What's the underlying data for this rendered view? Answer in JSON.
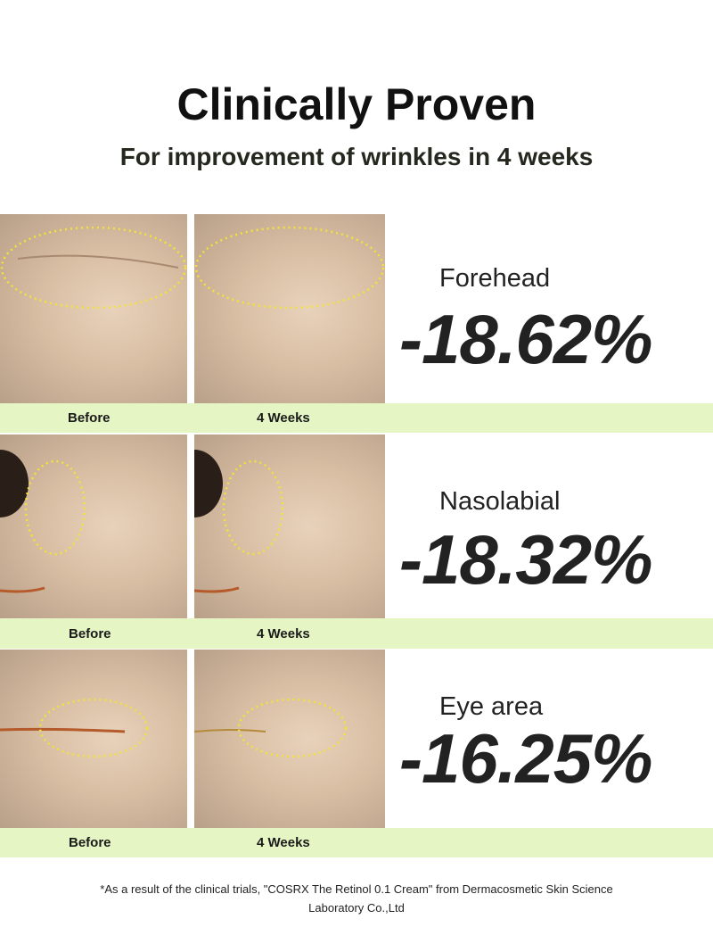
{
  "header": {
    "title": "Clinically Proven",
    "subtitle": "For improvement of wrinkles in 4 weeks"
  },
  "results": [
    {
      "area": "Forehead",
      "value": "-18.62%",
      "before_label": "Before",
      "after_label": "4 Weeks"
    },
    {
      "area": "Nasolabial",
      "value": "-18.32%",
      "before_label": "Before",
      "after_label": "4 Weeks"
    },
    {
      "area": "Eye area",
      "value": "-16.25%",
      "before_label": "Before",
      "after_label": "4 Weeks"
    }
  ],
  "footnote": "*As a result of the clinical trials, \"COSRX The Retinol 0.1 Cream\" from Dermacosmetic Skin Science Laboratory Co.,Ltd",
  "colors": {
    "band": "#e6f5c4",
    "ellipse": "#f2e23a"
  }
}
